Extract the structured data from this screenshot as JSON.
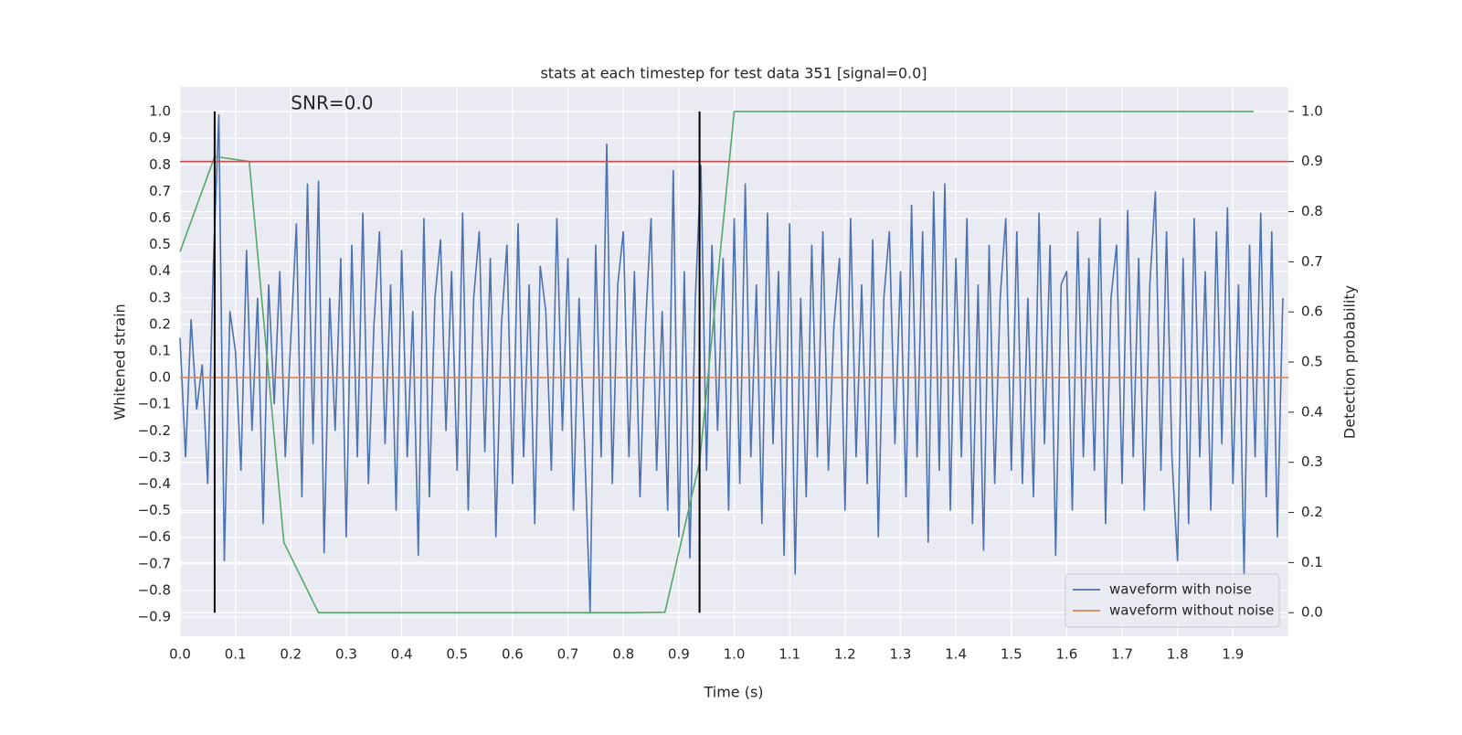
{
  "chart_data": {
    "type": "line",
    "title": "stats at each timestep for test data 351 [signal=0.0]",
    "annotation": "SNR=0.0",
    "annotation_x": 0.2,
    "annotation_y": 1.0,
    "xlabel": "Time (s)",
    "ylabel": "Whitened strain",
    "y2label": "Detection probability",
    "xlim": [
      0,
      2.0
    ],
    "ylim": [
      -0.972,
      1.093
    ],
    "y2lim": [
      -0.047,
      1.049
    ],
    "xticks": [
      {
        "value": 0,
        "label": "0.0"
      },
      0.1,
      0.2,
      0.3,
      0.4,
      0.5,
      0.6,
      0.7,
      0.8,
      0.9,
      {
        "value": 1,
        "label": "1.0"
      },
      1.1,
      1.2,
      1.3,
      1.4,
      1.5,
      1.6,
      1.7,
      1.8,
      1.9
    ],
    "yticks": [
      {
        "value": -0.9,
        "label": "−0.9"
      },
      {
        "value": -0.8,
        "label": "−0.8"
      },
      {
        "value": -0.7,
        "label": "−0.7"
      },
      {
        "value": -0.6,
        "label": "−0.6"
      },
      {
        "value": -0.5,
        "label": "−0.5"
      },
      {
        "value": -0.4,
        "label": "−0.4"
      },
      {
        "value": -0.3,
        "label": "−0.3"
      },
      {
        "value": -0.2,
        "label": "−0.2"
      },
      {
        "value": -0.1,
        "label": "−0.1"
      },
      {
        "value": 0,
        "label": "0.0"
      },
      0.1,
      0.2,
      0.3,
      0.4,
      0.5,
      0.6,
      0.7,
      0.8,
      0.9,
      {
        "value": 1,
        "label": "1.0"
      }
    ],
    "y2ticks": [
      {
        "value": 0,
        "label": "0.0"
      },
      0.1,
      0.2,
      0.3,
      0.4,
      0.5,
      0.6,
      0.7,
      0.8,
      0.9,
      {
        "value": 1,
        "label": "1.0"
      }
    ],
    "grid": true,
    "legend": "lower right",
    "series": [
      {
        "name": "waveform with noise",
        "color": "#4c72b0",
        "x": [
          0,
          0.01,
          0.02,
          0.03,
          0.04,
          0.05,
          0.06,
          0.07,
          0.08,
          0.09,
          0.1,
          0.11,
          0.12,
          0.13,
          0.14,
          0.15,
          0.16,
          0.17,
          0.18,
          0.19,
          0.2,
          0.21,
          0.22,
          0.23,
          0.24,
          0.25,
          0.26,
          0.27,
          0.28,
          0.29,
          0.3,
          0.31,
          0.32,
          0.33,
          0.34,
          0.35,
          0.36,
          0.37,
          0.38,
          0.39,
          0.4,
          0.41,
          0.42,
          0.43,
          0.44,
          0.45,
          0.46,
          0.47,
          0.48,
          0.49,
          0.5,
          0.51,
          0.52,
          0.53,
          0.54,
          0.55,
          0.56,
          0.57,
          0.58,
          0.59,
          0.6,
          0.61,
          0.62,
          0.63,
          0.64,
          0.65,
          0.66,
          0.67,
          0.68,
          0.69,
          0.7,
          0.71,
          0.72,
          0.73,
          0.74,
          0.75,
          0.76,
          0.77,
          0.78,
          0.79,
          0.8,
          0.81,
          0.82,
          0.83,
          0.84,
          0.85,
          0.86,
          0.87,
          0.88,
          0.89,
          0.9,
          0.91,
          0.92,
          0.93,
          0.94,
          0.95,
          0.96,
          0.97,
          0.98,
          0.99,
          1,
          1.01,
          1.02,
          1.03,
          1.04,
          1.05,
          1.06,
          1.07,
          1.08,
          1.09,
          1.1,
          1.11,
          1.12,
          1.13,
          1.14,
          1.15,
          1.16,
          1.17,
          1.18,
          1.19,
          1.2,
          1.21,
          1.22,
          1.23,
          1.24,
          1.25,
          1.26,
          1.27,
          1.28,
          1.29,
          1.3,
          1.31,
          1.32,
          1.33,
          1.34,
          1.35,
          1.36,
          1.37,
          1.38,
          1.39,
          1.4,
          1.41,
          1.42,
          1.43,
          1.44,
          1.45,
          1.46,
          1.47,
          1.48,
          1.49,
          1.5,
          1.51,
          1.52,
          1.53,
          1.54,
          1.55,
          1.56,
          1.57,
          1.58,
          1.59,
          1.6,
          1.61,
          1.62,
          1.63,
          1.64,
          1.65,
          1.66,
          1.67,
          1.68,
          1.69,
          1.7,
          1.71,
          1.72,
          1.73,
          1.74,
          1.75,
          1.76,
          1.77,
          1.78,
          1.79,
          1.8,
          1.81,
          1.82,
          1.83,
          1.84,
          1.85,
          1.86,
          1.87,
          1.88,
          1.89,
          1.9,
          1.91,
          1.92,
          1.93,
          1.94,
          1.95,
          1.96,
          1.97,
          1.98,
          1.99
        ],
        "values": [
          0.15,
          -0.3,
          0.22,
          -0.12,
          0.05,
          -0.4,
          0.42,
          0.99,
          -0.69,
          0.25,
          0.1,
          -0.35,
          0.48,
          -0.2,
          0.3,
          -0.55,
          0.35,
          -0.1,
          0.4,
          -0.3,
          0.15,
          0.58,
          -0.45,
          0.73,
          -0.25,
          0.74,
          -0.66,
          0.3,
          -0.2,
          0.45,
          -0.6,
          0.5,
          -0.3,
          0.62,
          -0.4,
          0.2,
          0.55,
          -0.25,
          0.35,
          -0.5,
          0.48,
          -0.3,
          0.25,
          -0.67,
          0.6,
          -0.45,
          0.3,
          0.52,
          -0.2,
          0.4,
          -0.35,
          0.62,
          -0.5,
          0.3,
          0.55,
          -0.28,
          0.45,
          -0.6,
          0.2,
          0.5,
          -0.4,
          0.58,
          -0.3,
          0.35,
          -0.55,
          0.42,
          0.25,
          -0.35,
          0.6,
          -0.2,
          0.45,
          -0.5,
          0.3,
          -0.25,
          -0.88,
          0.5,
          -0.3,
          0.88,
          -0.4,
          0.35,
          0.55,
          -0.3,
          0.4,
          -0.45,
          0.2,
          0.6,
          -0.35,
          0.25,
          -0.5,
          0.78,
          -0.6,
          0.4,
          -0.68,
          0.3,
          0.8,
          -0.35,
          0.5,
          -0.2,
          0.45,
          -0.5,
          0.6,
          -0.4,
          0.73,
          -0.3,
          0.35,
          -0.55,
          0.62,
          -0.25,
          0.4,
          -0.67,
          0.58,
          -0.74,
          0.3,
          -0.45,
          0.5,
          -0.3,
          0.55,
          -0.35,
          0.2,
          0.45,
          -0.5,
          0.6,
          -0.3,
          0.35,
          -0.4,
          0.52,
          -0.6,
          0.3,
          0.55,
          -0.25,
          0.4,
          -0.45,
          0.65,
          -0.3,
          0.55,
          -0.62,
          0.7,
          -0.35,
          0.73,
          -0.5,
          0.45,
          -0.3,
          0.6,
          -0.55,
          0.35,
          -0.65,
          0.5,
          -0.4,
          0.3,
          0.6,
          -0.35,
          0.55,
          -0.4,
          0.3,
          -0.45,
          0.62,
          -0.25,
          0.5,
          -0.67,
          0.35,
          0.4,
          -0.5,
          0.55,
          -0.3,
          0.45,
          -0.35,
          0.6,
          -0.55,
          0.3,
          0.5,
          -0.4,
          0.63,
          -0.3,
          0.45,
          -0.5,
          0.35,
          0.7,
          -0.35,
          0.55,
          -0.3,
          -0.69,
          0.45,
          -0.55,
          0.6,
          -0.3,
          0.4,
          -0.5,
          0.55,
          -0.25,
          0.64,
          -0.4,
          0.35,
          -0.74,
          0.5,
          -0.3,
          0.62,
          -0.45,
          0.55,
          -0.6,
          0.3
        ]
      },
      {
        "name": "waveform without noise",
        "color": "#dd8452",
        "x": [
          0,
          2.0
        ],
        "values": [
          0,
          0
        ]
      },
      {
        "color": "#55a868",
        "axis": "y2",
        "x": [
          0,
          0.0625,
          0.125,
          0.1875,
          0.25,
          0.3125,
          0.375,
          0.4375,
          0.5,
          0.5625,
          0.625,
          0.6875,
          0.75,
          0.8125,
          0.875,
          0.9375,
          1.0,
          1.0625,
          1.125,
          1.1875,
          1.25,
          1.3125,
          1.375,
          1.4375,
          1.5,
          1.5625,
          1.625,
          1.6875,
          1.75,
          1.8125,
          1.875,
          1.9375
        ],
        "values": [
          0.72,
          0.91,
          0.9,
          0.14,
          0.0,
          0.0,
          0.0,
          0.0,
          0.0,
          0.0,
          0.0,
          0.0,
          0.0,
          0.0,
          0.001,
          0.3,
          1.0,
          1.0,
          1.0,
          1.0,
          1.0,
          1.0,
          1.0,
          1.0,
          1.0,
          1.0,
          1.0,
          1.0,
          1.0,
          1.0,
          1.0,
          1.0
        ]
      }
    ],
    "hline": {
      "y2": 0.9,
      "color": "#c44e52"
    },
    "vlines": {
      "x": [
        0.0625,
        0.9375
      ],
      "color": "#000000"
    }
  }
}
